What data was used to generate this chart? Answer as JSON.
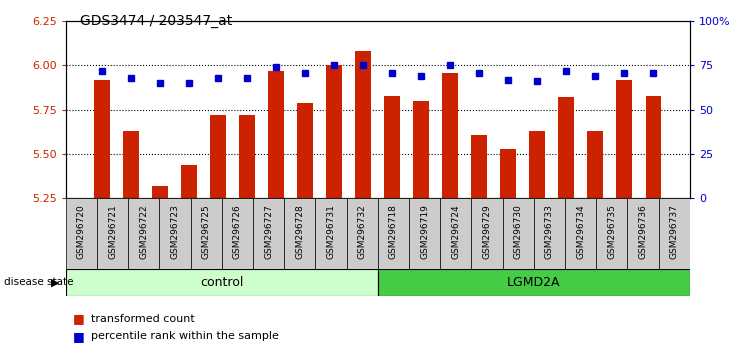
{
  "title": "GDS3474 / 203547_at",
  "samples": [
    "GSM296720",
    "GSM296721",
    "GSM296722",
    "GSM296723",
    "GSM296725",
    "GSM296726",
    "GSM296727",
    "GSM296728",
    "GSM296731",
    "GSM296732",
    "GSM296718",
    "GSM296719",
    "GSM296724",
    "GSM296729",
    "GSM296730",
    "GSM296733",
    "GSM296734",
    "GSM296735",
    "GSM296736",
    "GSM296737"
  ],
  "bar_values": [
    5.92,
    5.63,
    5.32,
    5.44,
    5.72,
    5.72,
    5.97,
    5.79,
    6.0,
    6.08,
    5.83,
    5.8,
    5.96,
    5.61,
    5.53,
    5.63,
    5.82,
    5.63,
    5.92,
    5.83
  ],
  "dot_values": [
    72,
    68,
    65,
    65,
    68,
    68,
    74,
    71,
    75,
    75,
    71,
    69,
    75,
    71,
    67,
    66,
    72,
    69,
    71,
    71
  ],
  "control_count": 10,
  "lgmd2a_count": 10,
  "ylim_left": [
    5.25,
    6.25
  ],
  "ylim_right": [
    0,
    100
  ],
  "yticks_left": [
    5.25,
    5.5,
    5.75,
    6.0,
    6.25
  ],
  "yticks_right": [
    0,
    25,
    50,
    75,
    100
  ],
  "bar_color": "#cc2200",
  "dot_color": "#0000cc",
  "control_color": "#ccffcc",
  "lgmd2a_color": "#44cc44",
  "col_bg_color": "#cccccc",
  "plot_bg": "#ffffff",
  "legend_bar_label": "transformed count",
  "legend_dot_label": "percentile rank within the sample",
  "control_label": "control",
  "lgmd2a_label": "LGMD2A",
  "disease_state_label": "disease state",
  "grid_lines": [
    5.5,
    5.75,
    6.0
  ]
}
